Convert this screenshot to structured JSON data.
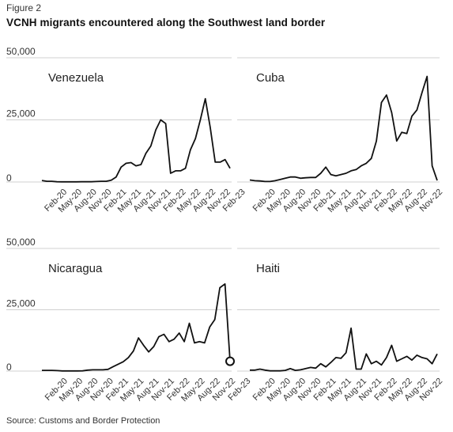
{
  "figure_label": "Figure 2",
  "title": "VCNH migrants encountered along the Southwest land border",
  "source": "Source: Customs and Border Protection",
  "colors": {
    "line": "#111111",
    "grid": "#d0d0d0",
    "text": "#333333"
  },
  "chart_data": [
    {
      "type": "line",
      "title": "Venezuela",
      "ylim": [
        0,
        50000
      ],
      "yticks": [
        0,
        25000,
        50000
      ],
      "ytick_labels": [
        "0",
        "25,000",
        "50,000"
      ],
      "tick_labels": [
        "Feb-20",
        "May-20",
        "Aug-20",
        "Nov-20",
        "Feb-21",
        "May-21",
        "Aug-21",
        "Nov-21",
        "Feb-22",
        "May-22",
        "Aug-22",
        "Nov-22",
        "Feb-23"
      ],
      "x_start": "2019-10",
      "values": [
        600,
        300,
        300,
        100,
        50,
        50,
        50,
        50,
        100,
        100,
        100,
        200,
        300,
        300,
        700,
        2000,
        6000,
        7500,
        7800,
        6500,
        7000,
        11500,
        14500,
        21000,
        25000,
        23500,
        3500,
        4500,
        4500,
        5500,
        13000,
        17500,
        25000,
        33500,
        22000,
        8000,
        8000,
        9000,
        5500
      ]
    },
    {
      "type": "line",
      "title": "Cuba",
      "ylim": [
        0,
        50000
      ],
      "yticks": [
        0,
        25000,
        50000
      ],
      "ytick_labels": [
        "0",
        "25,000",
        "50,000"
      ],
      "tick_labels": [
        "Feb-20",
        "May-20",
        "Aug-20",
        "Nov-20",
        "Feb-21",
        "May-21",
        "Aug-21",
        "Nov-21",
        "Feb-22",
        "May-22",
        "Aug-22",
        "Nov-22"
      ],
      "x_start": "2019-10",
      "values": [
        800,
        500,
        400,
        200,
        200,
        500,
        1000,
        1500,
        2000,
        2000,
        1500,
        1700,
        1800,
        1800,
        3500,
        6000,
        3000,
        2500,
        3000,
        3500,
        4500,
        5000,
        6500,
        7500,
        9500,
        16500,
        32000,
        35000,
        28000,
        16500,
        20000,
        19500,
        26500,
        29000,
        36000,
        42500,
        6500,
        600
      ]
    },
    {
      "type": "line",
      "title": "Nicaragua",
      "ylim": [
        0,
        50000
      ],
      "yticks": [
        0,
        25000,
        50000
      ],
      "ytick_labels": [
        "0",
        "25,000",
        "50,000"
      ],
      "tick_labels": [
        "Feb-20",
        "May-20",
        "Aug-20",
        "Nov-20",
        "Feb-21",
        "May-21",
        "Aug-21",
        "Nov-21",
        "Feb-22",
        "May-22",
        "Aug-22",
        "Nov-22",
        "Feb-23"
      ],
      "x_start": "2019-10",
      "values": [
        300,
        300,
        300,
        200,
        50,
        50,
        50,
        50,
        100,
        400,
        500,
        500,
        500,
        700,
        1800,
        2800,
        3800,
        5500,
        8200,
        13500,
        10500,
        7800,
        10000,
        14000,
        15000,
        12000,
        13000,
        15500,
        12000,
        19500,
        11500,
        12000,
        11500,
        18000,
        21000,
        34000,
        35500,
        4000
      ],
      "end_marker": true
    },
    {
      "type": "line",
      "title": "Haiti",
      "ylim": [
        0,
        50000
      ],
      "yticks": [
        0,
        25000,
        50000
      ],
      "ytick_labels": [
        "0",
        "25,000",
        "50,000"
      ],
      "tick_labels": [
        "Feb-20",
        "May-20",
        "Aug-20",
        "Nov-20",
        "Feb-21",
        "May-21",
        "Aug-21",
        "Nov-21",
        "Feb-22",
        "May-22",
        "Aug-22",
        "Nov-22"
      ],
      "x_start": "2019-10",
      "values": [
        400,
        400,
        800,
        400,
        100,
        100,
        100,
        300,
        1000,
        300,
        500,
        1000,
        1500,
        1200,
        3000,
        1700,
        3500,
        5500,
        5200,
        7500,
        17500,
        800,
        800,
        7000,
        3000,
        4000,
        2500,
        5500,
        10500,
        4000,
        5000,
        6000,
        4500,
        6500,
        5500,
        5000,
        3000,
        7000
      ]
    }
  ]
}
